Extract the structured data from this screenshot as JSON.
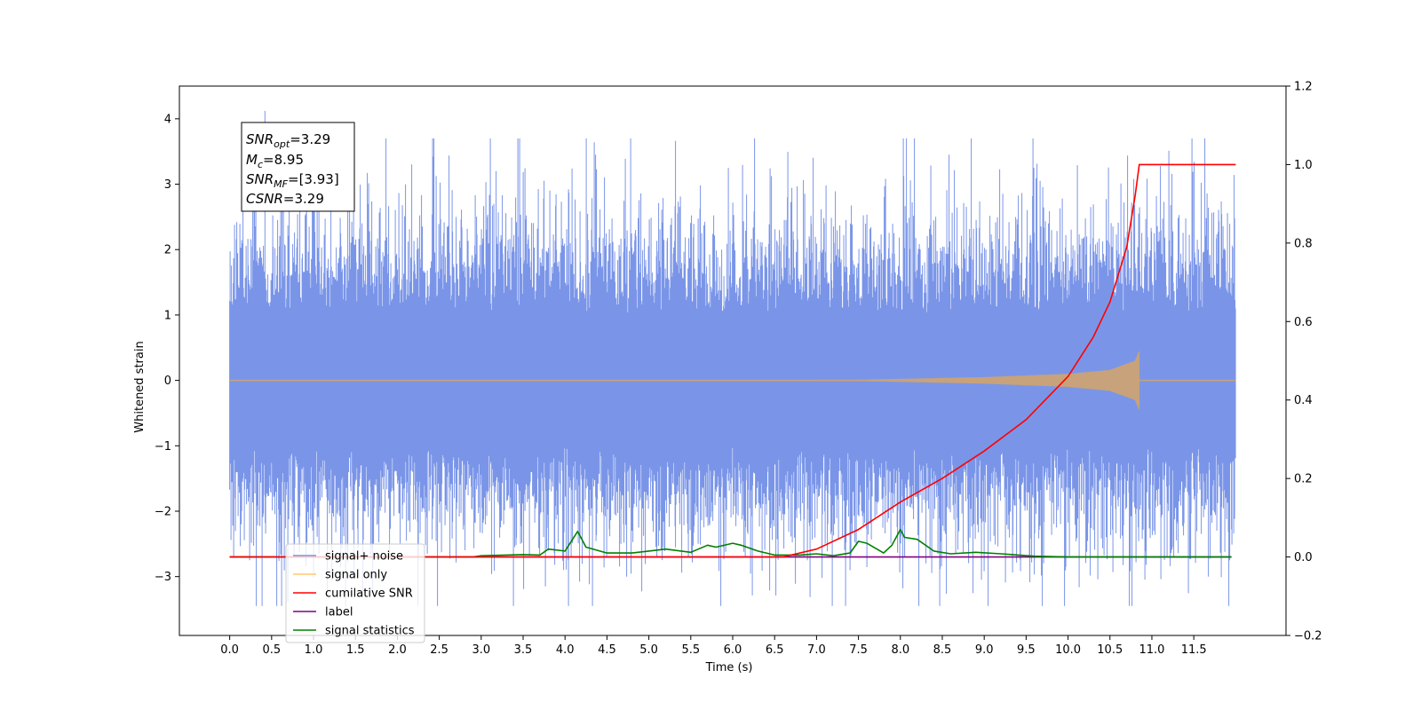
{
  "chart_data": {
    "type": "line",
    "xlabel": "Time (s)",
    "ylabel": "Whitened strain",
    "xlim": [
      -0.6,
      12.6
    ],
    "ylim": [
      -3.9,
      4.5
    ],
    "y2lim": [
      -0.2,
      1.2
    ],
    "grid": false,
    "legend_position": "lower-left",
    "x_ticks": [
      "0.0",
      "0.5",
      "1.0",
      "1.5",
      "2.0",
      "2.5",
      "3.0",
      "3.5",
      "4.0",
      "4.5",
      "5.0",
      "5.5",
      "6.0",
      "6.5",
      "7.0",
      "7.5",
      "8.0",
      "8.5",
      "9.0",
      "9.5",
      "10.0",
      "10.5",
      "11.0",
      "11.5"
    ],
    "y_ticks": [
      "4",
      "3",
      "2",
      "1",
      "0",
      "−1",
      "−2",
      "−3"
    ],
    "y2_ticks": [
      "1.2",
      "1.0",
      "0.8",
      "0.6",
      "0.4",
      "0.2",
      "0.0",
      "−0.2"
    ],
    "annotations": {
      "snr_opt": {
        "symbol": "SNR",
        "sub": "opt",
        "value": "=3.29"
      },
      "mc": {
        "symbol": "M",
        "sub": "c",
        "value": "=8.95"
      },
      "snr_mf": {
        "symbol": "SNR",
        "sub": "MF",
        "value": "=[3.93]"
      },
      "csnr": {
        "symbol": "CSNR",
        "sub": "",
        "value": "=3.29"
      }
    },
    "series": [
      {
        "name": "signal+ noise",
        "color": "#7a95e8",
        "axis": "left",
        "x_range": [
          0.0,
          12.0
        ],
        "noise_std": 0.95,
        "peak_value": 4.12,
        "peak_x": 0.42
      },
      {
        "name": "signal only",
        "color": "#c8a27a",
        "axis": "left",
        "x_range": [
          0.0,
          12.0
        ],
        "merger_x": 10.85,
        "envelope": [
          [
            0.0,
            0.0
          ],
          [
            7.5,
            0.01
          ],
          [
            9.0,
            0.05
          ],
          [
            10.0,
            0.1
          ],
          [
            10.5,
            0.16
          ],
          [
            10.8,
            0.3
          ],
          [
            10.85,
            0.45
          ]
        ]
      },
      {
        "name": "cumilative SNR",
        "color": "#ff0000",
        "axis": "right",
        "x": [
          0.0,
          6.6,
          7.0,
          7.5,
          8.0,
          8.5,
          9.0,
          9.5,
          10.0,
          10.3,
          10.5,
          10.7,
          10.8,
          10.85,
          11.0,
          12.0
        ],
        "y": [
          0.0,
          0.0,
          0.02,
          0.07,
          0.14,
          0.2,
          0.27,
          0.35,
          0.46,
          0.56,
          0.65,
          0.79,
          0.92,
          1.0,
          1.0,
          1.0
        ]
      },
      {
        "name": "label",
        "color": "#800080",
        "axis": "right",
        "x": [
          0.0,
          11.95
        ],
        "y": [
          0.0,
          0.0
        ]
      },
      {
        "name": "signal statistics",
        "color": "#008000",
        "axis": "right",
        "x": [
          0.0,
          2.9,
          3.0,
          3.5,
          3.7,
          3.8,
          4.0,
          4.15,
          4.25,
          4.5,
          4.8,
          5.0,
          5.2,
          5.5,
          5.7,
          5.8,
          6.0,
          6.1,
          6.3,
          6.5,
          6.8,
          7.0,
          7.2,
          7.4,
          7.5,
          7.6,
          7.8,
          7.9,
          8.0,
          8.05,
          8.2,
          8.4,
          8.6,
          8.9,
          9.2,
          9.6,
          10.0,
          11.95
        ],
        "y": [
          0.0,
          0.0,
          0.003,
          0.006,
          0.005,
          0.02,
          0.015,
          0.065,
          0.025,
          0.01,
          0.01,
          0.015,
          0.02,
          0.012,
          0.03,
          0.025,
          0.035,
          0.03,
          0.015,
          0.005,
          0.005,
          0.008,
          0.003,
          0.01,
          0.04,
          0.035,
          0.01,
          0.03,
          0.07,
          0.05,
          0.045,
          0.015,
          0.008,
          0.012,
          0.008,
          0.002,
          0.0,
          0.0
        ]
      }
    ],
    "legend": [
      {
        "label": "signal+ noise",
        "color": "#7a95e8"
      },
      {
        "label": "signal only",
        "color": "#ffc86e"
      },
      {
        "label": "cumilative SNR",
        "color": "#ff0000"
      },
      {
        "label": "label",
        "color": "#800080"
      },
      {
        "label": "signal statistics",
        "color": "#008000"
      }
    ]
  }
}
